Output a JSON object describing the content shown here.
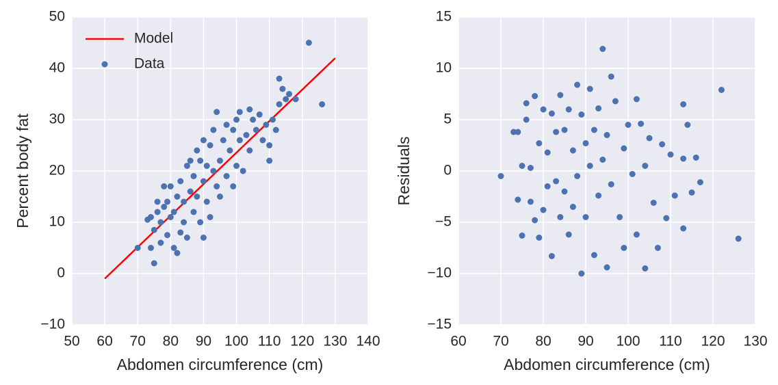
{
  "chart_data": [
    {
      "type": "scatter",
      "xlabel": "Abdomen circumference (cm)",
      "ylabel": "Percent body fat",
      "xlim": [
        50,
        140
      ],
      "ylim": [
        -10,
        50
      ],
      "xticks": [
        50,
        60,
        70,
        80,
        90,
        100,
        110,
        120,
        130,
        140
      ],
      "yticks": [
        {
          "value": -10,
          "label": "−10"
        },
        0,
        10,
        20,
        30,
        40,
        50
      ],
      "grid": true,
      "legend": "upper left",
      "series": [
        {
          "name": "Model",
          "kind": "line",
          "color": "#ff0000",
          "x": [
            60,
            130
          ],
          "values": [
            -1,
            42
          ]
        },
        {
          "name": "Data",
          "kind": "scatter",
          "color": "#4c72b0",
          "x": [
            70,
            73,
            74,
            74,
            75,
            75,
            76,
            76,
            77,
            77,
            78,
            78,
            79,
            79,
            80,
            80,
            81,
            81,
            82,
            82,
            83,
            83,
            84,
            84,
            85,
            85,
            86,
            86,
            87,
            87,
            88,
            88,
            89,
            89,
            90,
            90,
            90,
            91,
            91,
            92,
            92,
            93,
            93,
            94,
            94,
            95,
            95,
            96,
            97,
            97,
            98,
            99,
            99,
            100,
            100,
            101,
            101,
            102,
            103,
            104,
            104,
            105,
            106,
            107,
            108,
            109,
            110,
            111,
            112,
            113,
            113,
            114,
            115,
            116,
            118,
            122,
            126,
            110
          ],
          "values": [
            5,
            10.5,
            11,
            5,
            2,
            8.5,
            12,
            14,
            6,
            10,
            13,
            17,
            7.5,
            14,
            17,
            11,
            5,
            12,
            15,
            4,
            18,
            8,
            14,
            10,
            21,
            7,
            16,
            22,
            12,
            19,
            24,
            15,
            10,
            22,
            26,
            18,
            7,
            21,
            14,
            25,
            11,
            20,
            28,
            17,
            31.5,
            22,
            15,
            26,
            19,
            29,
            24,
            17,
            28,
            21,
            30,
            31.5,
            26,
            20,
            27,
            32,
            24,
            30,
            28,
            31,
            26,
            29,
            25,
            30,
            28,
            38,
            33,
            36,
            34,
            35,
            34,
            45,
            33,
            22
          ]
        }
      ]
    },
    {
      "type": "scatter",
      "xlabel": "Abdomen circumference (cm)",
      "ylabel": "Residuals",
      "xlim": [
        60,
        130
      ],
      "ylim": [
        -15,
        15
      ],
      "xticks": [
        60,
        70,
        80,
        90,
        100,
        110,
        120,
        130
      ],
      "yticks": [
        {
          "value": -15,
          "label": "−15"
        },
        {
          "value": -10,
          "label": "−10"
        },
        {
          "value": -5,
          "label": "−5"
        },
        0,
        5,
        10,
        15
      ],
      "grid": true,
      "series": [
        {
          "kind": "scatter",
          "color": "#4c72b0",
          "x": [
            70,
            73,
            74,
            74,
            75,
            75,
            76,
            76,
            77,
            77,
            78,
            78,
            79,
            79,
            80,
            80,
            81,
            81,
            82,
            82,
            83,
            83,
            84,
            84,
            85,
            85,
            86,
            86,
            87,
            87,
            88,
            88,
            89,
            89,
            90,
            90,
            91,
            91,
            92,
            92,
            93,
            93,
            94,
            94,
            95,
            95,
            96,
            96,
            97,
            98,
            99,
            99,
            100,
            101,
            102,
            102,
            103,
            104,
            104,
            105,
            106,
            107,
            108,
            109,
            110,
            111,
            113,
            113,
            114,
            115,
            116,
            117,
            122,
            126,
            113
          ],
          "values": [
            -0.5,
            3.8,
            3.8,
            -2.8,
            -6.3,
            0.5,
            5,
            6.6,
            -3,
            0.3,
            7.3,
            -4.8,
            2.7,
            -6.5,
            6,
            -3.8,
            -1.5,
            1.8,
            -8.3,
            5.6,
            -1,
            3.8,
            7.4,
            -4.5,
            -2,
            4,
            6,
            -6.2,
            2,
            -3.5,
            8.4,
            -0.5,
            -10,
            5.5,
            2.7,
            -4.5,
            8,
            0.5,
            -8.2,
            4,
            6.1,
            -2.4,
            11.9,
            1.1,
            -9.4,
            3.5,
            9.2,
            -1.3,
            6.8,
            -4.5,
            2.2,
            -7.5,
            4.5,
            -0.3,
            7,
            -6.2,
            4.6,
            -9.5,
            0.5,
            3.2,
            -3.1,
            -7.5,
            2.6,
            -4.6,
            1.6,
            -2.4,
            6.5,
            -5.6,
            4.5,
            -2.1,
            1.3,
            -1.1,
            7.9,
            -6.6,
            1.2
          ]
        }
      ]
    }
  ]
}
